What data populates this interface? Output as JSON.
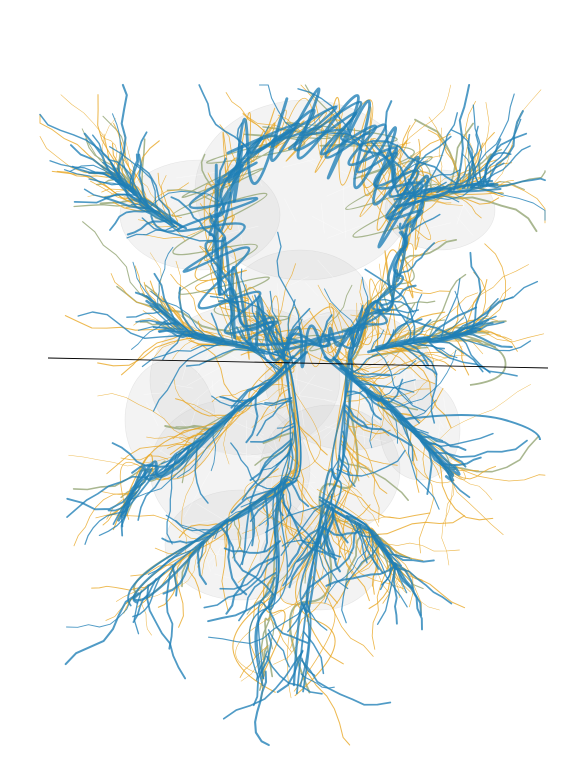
{
  "figure": {
    "kind": "3D neuron morphology rendering over a translucent neuropil mesh",
    "colors": {
      "background": "#ffffff",
      "mesh_fill": "#d4d4d4",
      "mesh_edge": "#c2c2c2",
      "neuron_primary": "#1f7fb6",
      "neuron_secondary": "#e8a825",
      "neuron_tertiary": "#9aaa7c",
      "cut_plane_line": "#000000"
    },
    "layers": [
      "neuropil-mesh",
      "olive-neuron-layer",
      "orange-neuron-layer",
      "blue-neuron-layer",
      "section-plane-line"
    ]
  }
}
